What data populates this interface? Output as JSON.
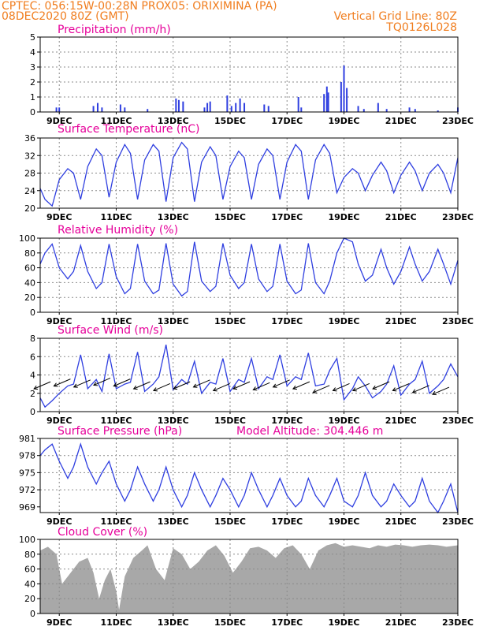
{
  "header": {
    "left1": "CPTEC:   056:15W-00:28N   PROX05: ORIXIMINA (PA)",
    "left2": "08DEC2020 80Z (GMT)",
    "right2": "Vertical Grid Line: 80Z",
    "right3": "TQ0126L028"
  },
  "colors": {
    "accent": "#f07d1e",
    "title": "#e6009a",
    "series": "#2f3fe0",
    "cloud": "#a8a8a8"
  },
  "x_labels": [
    "9DEC",
    "11DEC",
    "13DEC",
    "15DEC",
    "17DEC",
    "19DEC",
    "21DEC",
    "23DEC"
  ],
  "panels": {
    "precip": {
      "title": "Precipitation (mm/h)",
      "yticks": [
        "0",
        "1",
        "2",
        "3",
        "4",
        "5"
      ]
    },
    "temp": {
      "title": "Surface Temperature (nC)",
      "yticks": [
        "20",
        "24",
        "28",
        "32",
        "36"
      ]
    },
    "rh": {
      "title": "Relative Humidity (%)",
      "yticks": [
        "0",
        "20",
        "40",
        "60",
        "80",
        "100"
      ]
    },
    "wind": {
      "title": "Surface Wind (m/s)",
      "yticks": [
        "0",
        "2",
        "4",
        "6",
        "8"
      ]
    },
    "pres": {
      "title": "Surface Pressure (hPa)",
      "extra": "Model Altitude: 304.446 m",
      "yticks": [
        "969",
        "972",
        "975",
        "978",
        "981"
      ]
    },
    "cloud": {
      "title": "Cloud Cover (%)",
      "yticks": [
        "0",
        "20",
        "40",
        "60",
        "80",
        "100"
      ]
    }
  },
  "chart_data": [
    {
      "type": "bar",
      "ylabel": "Precipitation (mm/h)",
      "ylim": [
        0,
        5
      ],
      "x_range_days": [
        8.33,
        23.0
      ],
      "x": [
        8.9,
        9.0,
        10.2,
        10.35,
        10.5,
        11.15,
        11.3,
        12.1,
        13.1,
        13.2,
        13.35,
        14.1,
        14.2,
        14.3,
        14.9,
        15.05,
        15.2,
        15.35,
        15.5,
        16.2,
        16.35,
        17.4,
        17.5,
        18.3,
        18.4,
        18.45,
        18.9,
        19.0,
        19.1,
        19.5,
        19.7,
        20.2,
        20.5,
        21.3,
        21.5,
        22.3,
        23.0
      ],
      "values": [
        0.3,
        0.3,
        0.4,
        0.6,
        0.3,
        0.5,
        0.3,
        0.2,
        0.9,
        0.8,
        0.7,
        0.3,
        0.6,
        0.7,
        1.1,
        0.4,
        0.6,
        0.9,
        0.6,
        0.5,
        0.4,
        1.0,
        0.3,
        1.2,
        1.7,
        1.3,
        2.0,
        3.1,
        1.6,
        0.4,
        0.2,
        0.6,
        0.2,
        0.3,
        0.2,
        0.1,
        0.3
      ]
    },
    {
      "type": "line",
      "ylabel": "Surface Temperature (nC)",
      "ylim": [
        20,
        36
      ],
      "x": [
        8.33,
        8.5,
        8.75,
        9.0,
        9.3,
        9.5,
        9.75,
        10.0,
        10.3,
        10.5,
        10.75,
        11.0,
        11.3,
        11.5,
        11.75,
        12.0,
        12.3,
        12.5,
        12.75,
        13.0,
        13.3,
        13.5,
        13.75,
        14.0,
        14.3,
        14.5,
        14.75,
        15.0,
        15.3,
        15.5,
        15.75,
        16.0,
        16.3,
        16.5,
        16.75,
        17.0,
        17.3,
        17.5,
        17.75,
        18.0,
        18.3,
        18.5,
        18.75,
        19.0,
        19.3,
        19.5,
        19.75,
        20.0,
        20.3,
        20.5,
        20.75,
        21.0,
        21.3,
        21.5,
        21.75,
        22.0,
        22.3,
        22.5,
        22.75,
        23.0
      ],
      "values": [
        24.5,
        22.0,
        20.5,
        26.5,
        29.0,
        28.0,
        22.0,
        29.5,
        33.5,
        32.0,
        22.5,
        30.5,
        34.5,
        32.5,
        22.0,
        31.0,
        34.5,
        33.0,
        21.5,
        31.5,
        35.0,
        33.5,
        21.5,
        30.5,
        34.0,
        32.0,
        22.0,
        29.5,
        33.0,
        31.5,
        22.0,
        30.0,
        33.5,
        32.0,
        22.0,
        30.5,
        34.5,
        33.0,
        22.0,
        31.0,
        34.5,
        32.5,
        23.5,
        27.0,
        29.0,
        28.0,
        24.0,
        27.5,
        30.5,
        28.5,
        23.5,
        27.5,
        30.5,
        28.5,
        24.0,
        28.0,
        30.0,
        28.0,
        23.5,
        31.5
      ]
    },
    {
      "type": "line",
      "ylabel": "Relative Humidity (%)",
      "ylim": [
        0,
        100
      ],
      "x": [
        8.33,
        8.5,
        8.75,
        9.0,
        9.3,
        9.5,
        9.75,
        10.0,
        10.3,
        10.5,
        10.75,
        11.0,
        11.3,
        11.5,
        11.75,
        12.0,
        12.3,
        12.5,
        12.75,
        13.0,
        13.3,
        13.5,
        13.75,
        14.0,
        14.3,
        14.5,
        14.75,
        15.0,
        15.3,
        15.5,
        15.75,
        16.0,
        16.3,
        16.5,
        16.75,
        17.0,
        17.3,
        17.5,
        17.75,
        18.0,
        18.3,
        18.5,
        18.75,
        19.0,
        19.3,
        19.5,
        19.75,
        20.0,
        20.3,
        20.5,
        20.75,
        21.0,
        21.3,
        21.5,
        21.75,
        22.0,
        22.3,
        22.5,
        22.75,
        23.0
      ],
      "values": [
        65,
        80,
        92,
        60,
        45,
        55,
        90,
        55,
        32,
        40,
        92,
        48,
        25,
        32,
        92,
        42,
        25,
        30,
        93,
        38,
        22,
        28,
        95,
        42,
        28,
        35,
        93,
        50,
        32,
        40,
        92,
        45,
        28,
        35,
        92,
        42,
        25,
        30,
        93,
        40,
        25,
        42,
        80,
        100,
        95,
        65,
        42,
        50,
        85,
        60,
        38,
        55,
        88,
        65,
        42,
        55,
        85,
        65,
        38,
        70
      ]
    },
    {
      "type": "line",
      "ylabel": "Surface Wind (m/s)",
      "ylim": [
        0,
        8
      ],
      "x": [
        8.33,
        8.5,
        8.75,
        9.0,
        9.3,
        9.5,
        9.75,
        10.0,
        10.3,
        10.5,
        10.75,
        11.0,
        11.3,
        11.5,
        11.75,
        12.0,
        12.3,
        12.5,
        12.75,
        13.0,
        13.3,
        13.5,
        13.75,
        14.0,
        14.3,
        14.5,
        14.75,
        15.0,
        15.3,
        15.5,
        15.75,
        16.0,
        16.3,
        16.5,
        16.75,
        17.0,
        17.3,
        17.5,
        17.75,
        18.0,
        18.3,
        18.5,
        18.75,
        19.0,
        19.3,
        19.5,
        19.75,
        20.0,
        20.3,
        20.5,
        20.75,
        21.0,
        21.3,
        21.5,
        21.75,
        22.0,
        22.3,
        22.5,
        22.75,
        23.0
      ],
      "values": [
        1.5,
        0.5,
        1.2,
        2.0,
        2.8,
        3.0,
        6.2,
        2.5,
        3.5,
        2.2,
        6.3,
        2.5,
        3.0,
        3.2,
        6.5,
        2.2,
        3.0,
        3.8,
        7.3,
        2.4,
        3.5,
        3.0,
        5.5,
        2.0,
        3.2,
        3.0,
        5.8,
        2.2,
        3.5,
        3.2,
        5.8,
        2.5,
        3.8,
        3.5,
        6.2,
        2.8,
        3.8,
        3.5,
        6.4,
        2.8,
        3.0,
        4.5,
        5.8,
        1.3,
        2.5,
        3.8,
        2.8,
        1.5,
        2.2,
        3.0,
        5.0,
        1.8,
        3.0,
        3.5,
        5.5,
        2.0,
        2.8,
        3.5,
        5.2,
        3.8
      ]
    },
    {
      "type": "line",
      "ylabel": "Surface Pressure (hPa)",
      "ylim": [
        968,
        981
      ],
      "x": [
        8.33,
        8.5,
        8.75,
        9.0,
        9.3,
        9.5,
        9.75,
        10.0,
        10.3,
        10.5,
        10.75,
        11.0,
        11.3,
        11.5,
        11.75,
        12.0,
        12.3,
        12.5,
        12.75,
        13.0,
        13.3,
        13.5,
        13.75,
        14.0,
        14.3,
        14.5,
        14.75,
        15.0,
        15.3,
        15.5,
        15.75,
        16.0,
        16.3,
        16.5,
        16.75,
        17.0,
        17.3,
        17.5,
        17.75,
        18.0,
        18.3,
        18.5,
        18.75,
        19.0,
        19.3,
        19.5,
        19.75,
        20.0,
        20.3,
        20.5,
        20.75,
        21.0,
        21.3,
        21.5,
        21.75,
        22.0,
        22.3,
        22.5,
        22.75,
        23.0
      ],
      "values": [
        978,
        979,
        980,
        977,
        974,
        976,
        980,
        976,
        973,
        975,
        977,
        973,
        970,
        972,
        976,
        973,
        970,
        972,
        976,
        972,
        969,
        971,
        975,
        972,
        969,
        971,
        974,
        972,
        969,
        971,
        975,
        972,
        969,
        971,
        974,
        971,
        969,
        970,
        974,
        971,
        969,
        971,
        974,
        970,
        969,
        971,
        975,
        971,
        969,
        970,
        973,
        971,
        969,
        970,
        974,
        970,
        968,
        970,
        973,
        968
      ]
    },
    {
      "type": "area",
      "ylabel": "Cloud Cover (%)",
      "ylim": [
        0,
        100
      ],
      "x": [
        8.33,
        8.6,
        8.9,
        9.1,
        9.4,
        9.7,
        10.0,
        10.2,
        10.4,
        10.6,
        10.8,
        11.0,
        11.1,
        11.3,
        11.6,
        11.9,
        12.1,
        12.4,
        12.7,
        13.0,
        13.3,
        13.6,
        13.9,
        14.2,
        14.5,
        14.8,
        15.1,
        15.4,
        15.7,
        16.0,
        16.3,
        16.6,
        16.9,
        17.2,
        17.5,
        17.8,
        18.1,
        18.4,
        18.7,
        19.0,
        19.3,
        19.6,
        19.9,
        20.2,
        20.5,
        20.8,
        21.1,
        21.4,
        21.7,
        22.0,
        22.3,
        22.6,
        23.0
      ],
      "values": [
        85,
        90,
        80,
        40,
        55,
        70,
        75,
        55,
        20,
        45,
        60,
        30,
        5,
        50,
        75,
        85,
        92,
        60,
        45,
        88,
        80,
        60,
        70,
        85,
        92,
        78,
        55,
        70,
        88,
        90,
        85,
        75,
        88,
        92,
        80,
        60,
        85,
        92,
        95,
        90,
        92,
        90,
        88,
        92,
        90,
        93,
        92,
        90,
        92,
        93,
        92,
        90,
        92
      ]
    }
  ]
}
